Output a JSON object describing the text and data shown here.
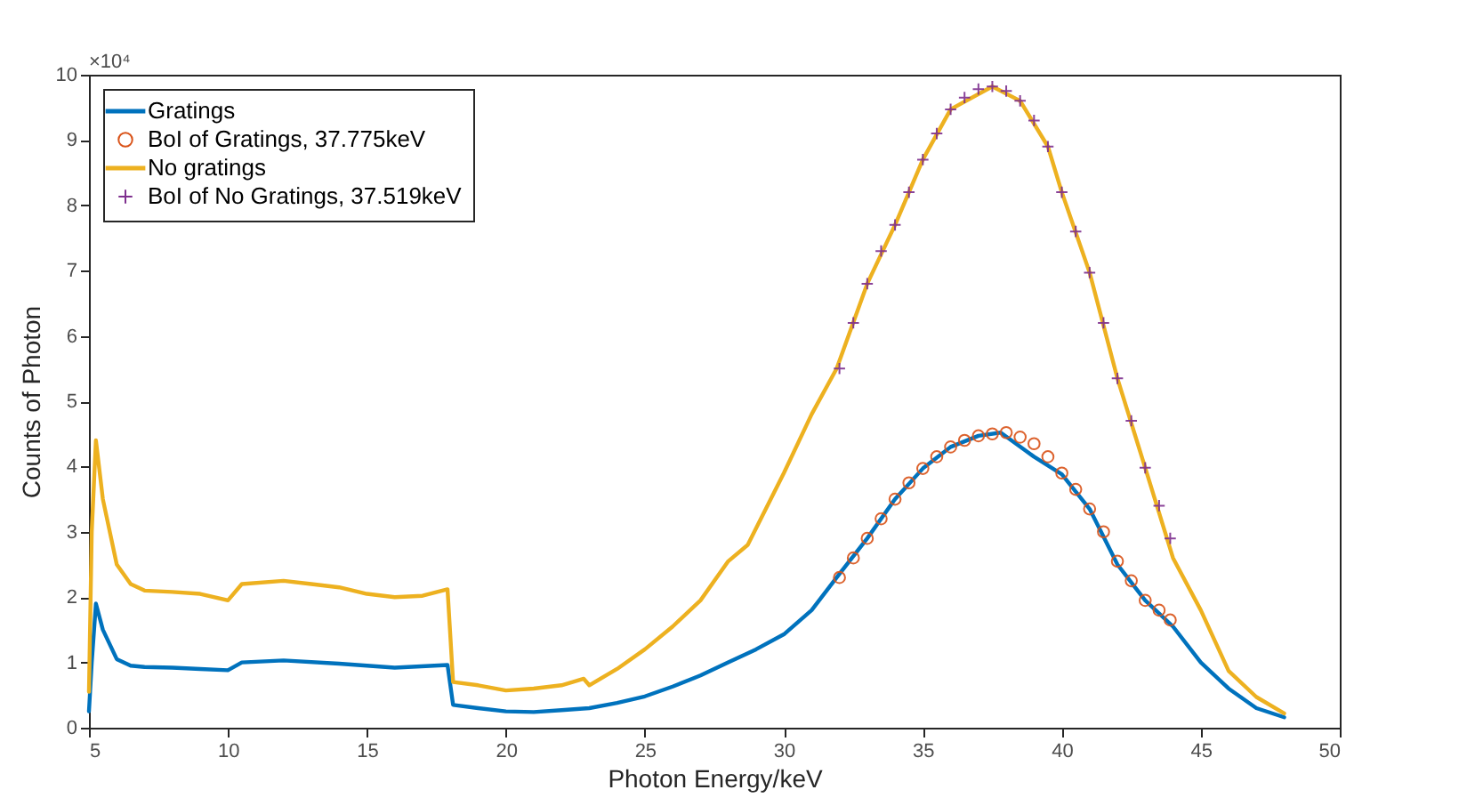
{
  "chart_data": {
    "type": "line",
    "xlabel": "Photon Energy/keV",
    "ylabel": "Counts of Photon",
    "annotations": [
      "×10⁴"
    ],
    "xlim": [
      5,
      50
    ],
    "xticks": [
      5,
      10,
      15,
      20,
      25,
      30,
      35,
      40,
      45,
      50
    ],
    "ylim": [
      0,
      10
    ],
    "yticks": [
      0,
      1,
      2,
      3,
      4,
      5,
      6,
      7,
      8,
      9,
      10
    ],
    "grid": false,
    "legend": "top left",
    "series": [
      {
        "name": "Gratings",
        "color": "#0072bd",
        "x": [
          5,
          5.1,
          5.25,
          5.5,
          6,
          6.5,
          7,
          8,
          9,
          10,
          10.5,
          12,
          14,
          16,
          17.9,
          18.1,
          19,
          20,
          21,
          22,
          23,
          24,
          25,
          26,
          27,
          28,
          29,
          30,
          31,
          31.9,
          33,
          34,
          35,
          36,
          37,
          37.8,
          39,
          40,
          41,
          42,
          43,
          44,
          45,
          46,
          47,
          48
        ],
        "values": [
          0.25,
          1.0,
          1.9,
          1.5,
          1.05,
          0.95,
          0.93,
          0.92,
          0.9,
          0.88,
          1.0,
          1.03,
          0.98,
          0.92,
          0.96,
          0.35,
          0.3,
          0.25,
          0.24,
          0.27,
          0.3,
          0.38,
          0.48,
          0.63,
          0.8,
          1.0,
          1.2,
          1.43,
          1.8,
          2.3,
          2.9,
          3.5,
          3.97,
          4.3,
          4.47,
          4.52,
          4.15,
          3.88,
          3.35,
          2.5,
          1.95,
          1.55,
          1.0,
          0.6,
          0.3,
          0.16
        ]
      },
      {
        "name": "BoI of Gratings, 37.775keV",
        "type": "scatter",
        "marker": "circle",
        "color": "#d95319",
        "x": [
          32,
          32.5,
          33,
          33.5,
          34,
          34.5,
          35,
          35.5,
          36,
          36.5,
          37,
          37.5,
          38,
          38.5,
          39,
          39.5,
          40,
          40.5,
          41,
          41.5,
          42,
          42.5,
          43,
          43.5,
          43.9
        ],
        "values": [
          2.3,
          2.6,
          2.9,
          3.2,
          3.5,
          3.75,
          3.97,
          4.15,
          4.3,
          4.4,
          4.47,
          4.5,
          4.52,
          4.45,
          4.35,
          4.15,
          3.9,
          3.65,
          3.35,
          3.0,
          2.55,
          2.25,
          1.95,
          1.8,
          1.65
        ]
      },
      {
        "name": "No gratings",
        "color": "#edb120",
        "x": [
          5,
          5.1,
          5.25,
          5.5,
          6,
          6.5,
          7,
          8,
          9,
          10,
          10.5,
          12,
          13,
          14,
          15,
          16,
          17,
          17.9,
          18.1,
          19,
          20,
          21,
          22,
          22.8,
          23,
          24,
          25,
          26,
          27,
          28,
          28.7,
          30,
          31,
          31.9,
          33,
          34,
          35,
          36,
          37.5,
          38.5,
          39.5,
          40,
          41,
          42,
          43,
          44,
          45,
          46,
          47,
          48
        ],
        "values": [
          0.55,
          3.0,
          4.4,
          3.5,
          2.5,
          2.2,
          2.1,
          2.08,
          2.05,
          1.95,
          2.2,
          2.25,
          2.2,
          2.15,
          2.05,
          2.0,
          2.02,
          2.12,
          0.7,
          0.65,
          0.57,
          0.6,
          0.65,
          0.75,
          0.65,
          0.9,
          1.2,
          1.55,
          1.95,
          2.55,
          2.8,
          3.9,
          4.8,
          5.5,
          6.8,
          7.7,
          8.7,
          9.47,
          9.82,
          9.6,
          8.9,
          8.2,
          6.97,
          5.35,
          3.98,
          2.6,
          1.8,
          0.87,
          0.47,
          0.22
        ]
      },
      {
        "name": "BoI of No Gratings, 37.519keV",
        "type": "scatter",
        "marker": "cross",
        "color": "#7e2f8e",
        "x": [
          32,
          32.5,
          33,
          33.5,
          34,
          34.5,
          35,
          35.5,
          36,
          36.5,
          37,
          37.5,
          38,
          38.5,
          39,
          39.5,
          40,
          40.5,
          41,
          41.5,
          42,
          42.5,
          43,
          43.5,
          43.9
        ],
        "values": [
          5.5,
          6.2,
          6.8,
          7.3,
          7.7,
          8.2,
          8.7,
          9.1,
          9.47,
          9.65,
          9.78,
          9.82,
          9.75,
          9.6,
          9.3,
          8.9,
          8.2,
          7.6,
          6.97,
          6.2,
          5.35,
          4.7,
          3.98,
          3.4,
          2.9
        ]
      }
    ]
  }
}
